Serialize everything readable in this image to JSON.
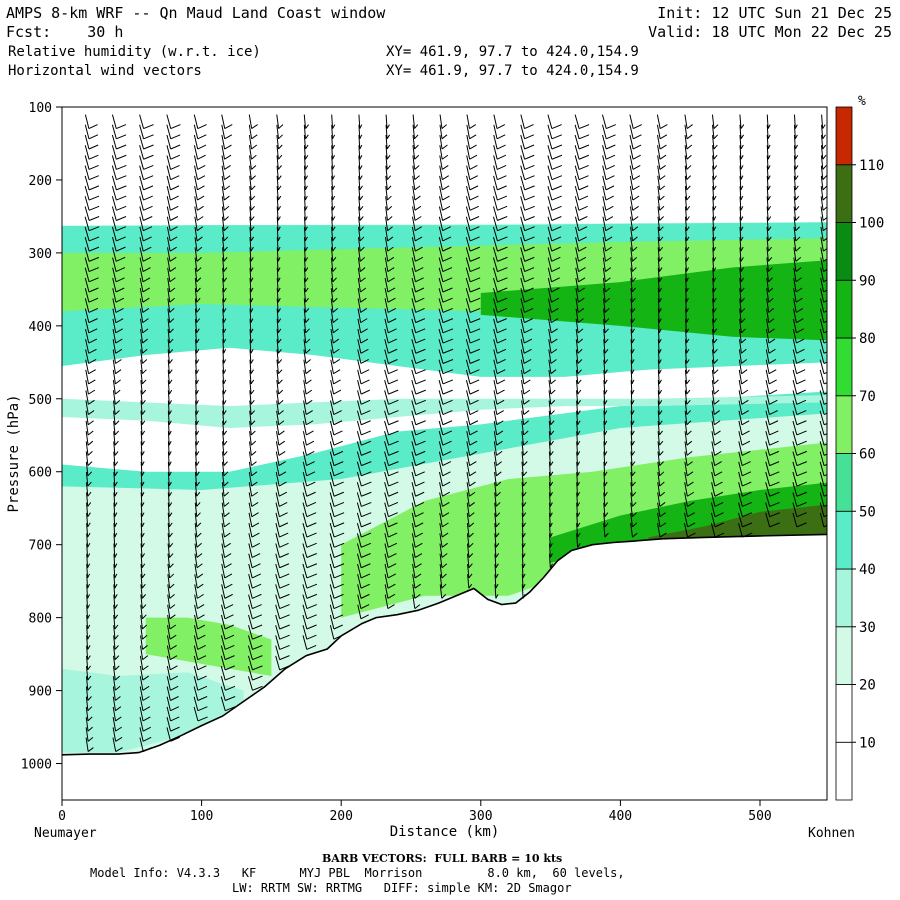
{
  "header": {
    "title": "AMPS 8-km WRF -- Qn Maud Land Coast window",
    "fcst": "Fcst:    30 h",
    "init": "Init: 12 UTC Sun 21 Dec 25",
    "valid": "Valid: 18 UTC Mon 22 Dec 25",
    "field1": "Relative humidity (w.r.t. ice)",
    "field2": "Horizontal wind vectors",
    "xy1": "XY= 461.9, 97.7 to 424.0,154.9",
    "xy2": "XY= 461.9, 97.7 to 424.0,154.9"
  },
  "footer": {
    "barb_note": "BARB VECTORS:  FULL BARB = 10 kts",
    "model_info": "Model Info: V4.3.3   KF      MYJ PBL  Morrison         8.0 km,  60 levels,",
    "model_info2": "LW: RRTM SW: RRTMG   DIFF: simple KM: 2D Smagor",
    "left_station": "Neumayer",
    "right_station": "Kohnen"
  },
  "colors": {
    "c10": "#ffffff",
    "c20": "#ffffff",
    "c30": "#d2fae6",
    "c40": "#a6f5dc",
    "c50": "#5aebc8",
    "c60": "#46e196",
    "c70": "#82f064",
    "c80": "#32dc32",
    "c90": "#14b414",
    "c100": "#0a8c14",
    "c110": "#3c6e14",
    "c120": "#c82800",
    "terrain": "#ffffff",
    "line": "#000000"
  },
  "chart_data": {
    "type": "heatmap",
    "title": "Relative humidity (w.r.t. ice) cross-section",
    "xlabel": "Distance (km)",
    "ylabel": "Pressure (hPa)",
    "xlim": [
      0,
      548
    ],
    "ylim": [
      100,
      1050
    ],
    "x_ticks": [
      0,
      100,
      200,
      300,
      400,
      500
    ],
    "x_tick_labels": [
      "0",
      "100",
      "200",
      "300",
      "400",
      "500"
    ],
    "y_ticks": [
      100,
      200,
      300,
      400,
      500,
      600,
      700,
      800,
      900,
      1000
    ],
    "y_tick_labels": [
      "100",
      "200",
      "300",
      "400",
      "500",
      "600",
      "700",
      "800",
      "900",
      "1000"
    ],
    "colorbar": {
      "unit": "%",
      "levels": [
        10,
        20,
        30,
        40,
        50,
        60,
        70,
        80,
        90,
        100,
        110
      ],
      "labels": [
        "10",
        "20",
        "30",
        "40",
        "50",
        "60",
        "70",
        "80",
        "90",
        "100",
        "110"
      ],
      "colors": [
        "#ffffff",
        "#ffffff",
        "#d2fae6",
        "#a6f5dc",
        "#5aebc8",
        "#46e196",
        "#82f064",
        "#32dc32",
        "#14b414",
        "#0a8c14",
        "#3c6e14",
        "#c82800"
      ]
    },
    "terrain_surface_pressure": {
      "x": [
        0,
        20,
        40,
        55,
        70,
        85,
        100,
        115,
        130,
        145,
        160,
        175,
        190,
        200,
        215,
        225,
        240,
        255,
        270,
        285,
        295,
        305,
        315,
        325,
        335,
        345,
        355,
        365,
        380,
        395,
        410,
        430,
        460,
        500,
        548
      ],
      "p": [
        988,
        987,
        987,
        985,
        975,
        962,
        948,
        935,
        915,
        895,
        870,
        852,
        843,
        825,
        808,
        800,
        796,
        790,
        780,
        768,
        760,
        775,
        782,
        780,
        765,
        745,
        722,
        708,
        700,
        697,
        695,
        692,
        690,
        688,
        686
      ]
    },
    "rh_layers": [
      {
        "value": 5,
        "x": [
          0,
          548
        ],
        "p_top": [
          100,
          100
        ],
        "p_bot": [
          263,
          258
        ]
      },
      {
        "value": 45,
        "x": [
          0,
          100,
          200,
          300,
          400,
          548
        ],
        "p_top": [
          263,
          262,
          262,
          262,
          260,
          258
        ],
        "p_bot": [
          620,
          625,
          610,
          575,
          540,
          520
        ]
      },
      {
        "value": 65,
        "x": [
          0,
          100,
          200,
          300,
          400,
          548
        ],
        "p_top": [
          300,
          300,
          295,
          290,
          285,
          280
        ],
        "p_bot": [
          380,
          370,
          375,
          380,
          385,
          395
        ]
      },
      {
        "value": 85,
        "x": [
          300,
          400,
          480,
          548
        ],
        "p_top": [
          355,
          340,
          320,
          310
        ],
        "p_bot": [
          385,
          400,
          415,
          420
        ]
      },
      {
        "value": 15,
        "x": [
          0,
          60,
          120,
          180,
          240,
          300,
          360,
          420,
          548
        ],
        "p_top": [
          455,
          440,
          430,
          440,
          455,
          470,
          470,
          460,
          450
        ],
        "p_bot": [
          590,
          600,
          600,
          575,
          545,
          535,
          520,
          505,
          490
        ]
      },
      {
        "value": 35,
        "x": [
          0,
          60,
          120,
          180,
          240,
          300,
          360,
          420,
          548
        ],
        "p_top": [
          500,
          505,
          510,
          505,
          500,
          500,
          500,
          500,
          495
        ],
        "p_bot": [
          525,
          530,
          540,
          535,
          525,
          515,
          510,
          510,
          505
        ]
      },
      {
        "value": 65,
        "x": [
          200,
          260,
          320,
          380,
          450,
          548
        ],
        "p_top": [
          700,
          640,
          610,
          600,
          580,
          560
        ],
        "p_bot": [
          800,
          770,
          770,
          730,
          700,
          690
        ]
      },
      {
        "value": 85,
        "x": [
          350,
          400,
          450,
          500,
          548
        ],
        "p_top": [
          690,
          660,
          640,
          625,
          615
        ],
        "p_bot": [
          725,
          700,
          696,
          692,
          688
        ]
      },
      {
        "value": 105,
        "x": [
          420,
          460,
          500,
          548
        ],
        "p_top": [
          690,
          675,
          655,
          645
        ],
        "p_bot": [
          696,
          694,
          692,
          690
        ]
      },
      {
        "value": 65,
        "x": [
          60,
          90,
          120,
          150
        ],
        "p_top": [
          800,
          800,
          810,
          830
        ],
        "p_bot": [
          850,
          860,
          870,
          880
        ]
      },
      {
        "value": 35,
        "x": [
          0,
          40,
          90,
          130
        ],
        "p_top": [
          870,
          880,
          875,
          900
        ],
        "p_bot": [
          985,
          985,
          960,
          945
        ]
      }
    ]
  }
}
